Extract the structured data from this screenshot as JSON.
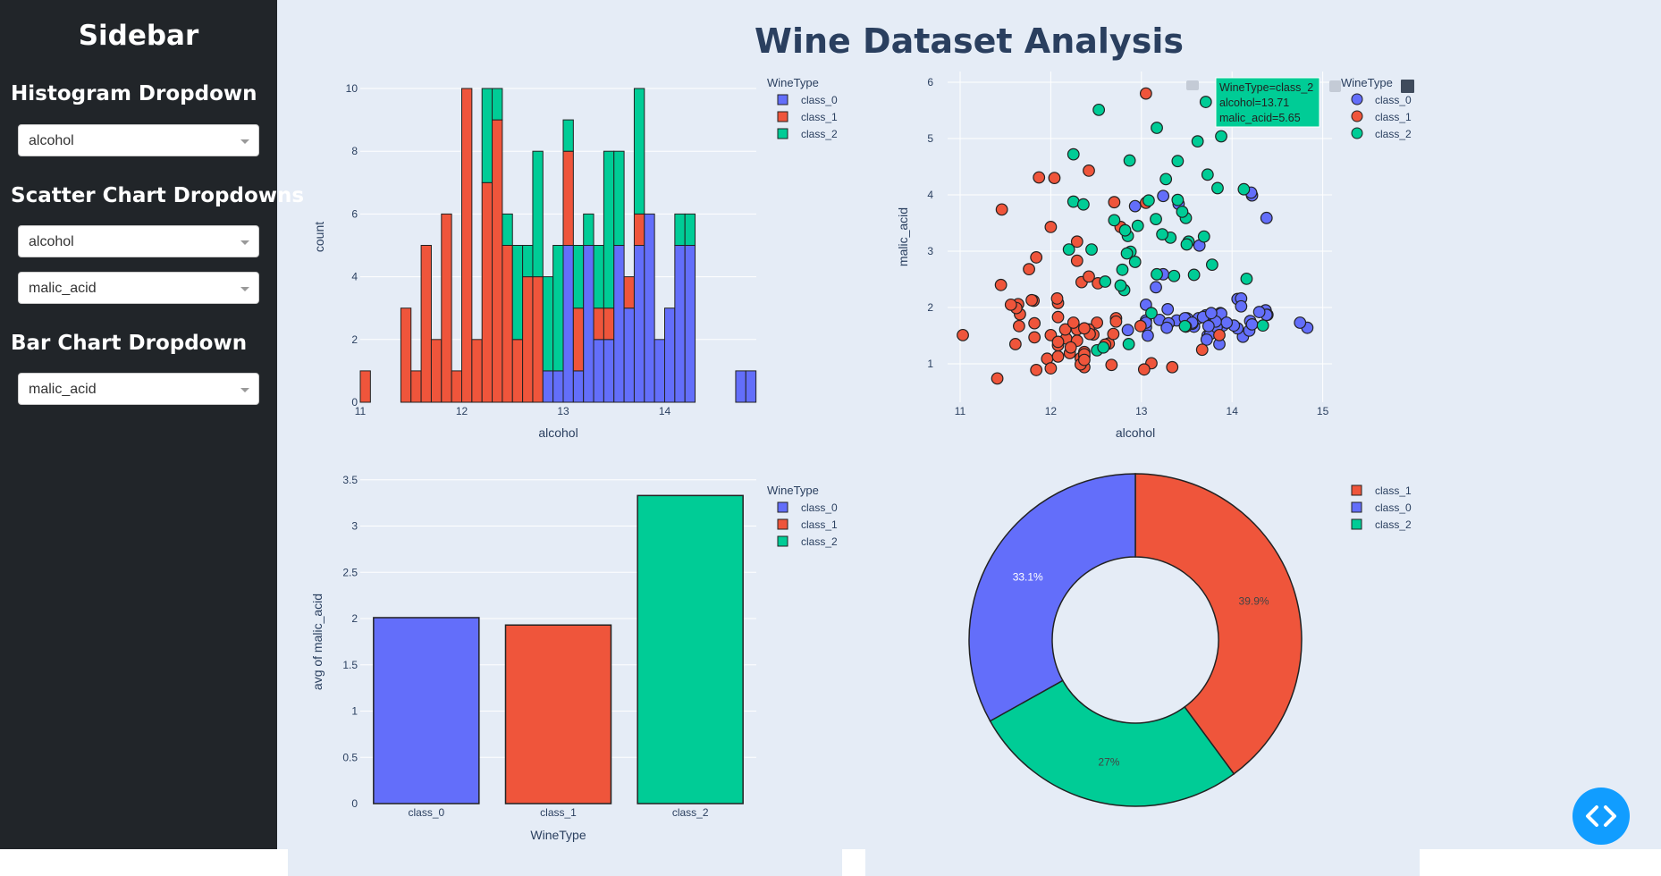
{
  "app_title": "Wine Dataset Analysis",
  "sidebar": {
    "title": "Sidebar",
    "histogram_label": "Histogram Dropdown",
    "histogram_value": "alcohol",
    "scatter_label": "Scatter Chart Dropdowns",
    "scatter_x_value": "alcohol",
    "scatter_y_value": "malic_acid",
    "bar_label": "Bar Chart Dropdown",
    "bar_value": "malic_acid"
  },
  "colors": {
    "class_0": "#636efa",
    "class_1": "#ef553b",
    "class_2": "#00cc96"
  },
  "chart_data": [
    {
      "type": "bar",
      "subtype": "stacked-histogram",
      "xlabel": "alcohol",
      "ylabel": "count",
      "legend_title": "WineType",
      "legend": [
        "class_0",
        "class_1",
        "class_2"
      ],
      "x_ticks": [
        "11",
        "12",
        "13",
        "14"
      ],
      "y_ticks": [
        "0",
        "2",
        "4",
        "6",
        "8",
        "10"
      ],
      "bin_width": 0.1,
      "bins": [
        {
          "x": 11.0,
          "c0": 0,
          "c1": 1,
          "c2": 0
        },
        {
          "x": 11.4,
          "c0": 0,
          "c1": 3,
          "c2": 0
        },
        {
          "x": 11.5,
          "c0": 0,
          "c1": 1,
          "c2": 0
        },
        {
          "x": 11.6,
          "c0": 0,
          "c1": 5,
          "c2": 0
        },
        {
          "x": 11.7,
          "c0": 0,
          "c1": 2,
          "c2": 0
        },
        {
          "x": 11.8,
          "c0": 0,
          "c1": 6,
          "c2": 0
        },
        {
          "x": 11.9,
          "c0": 0,
          "c1": 1,
          "c2": 0
        },
        {
          "x": 12.0,
          "c0": 0,
          "c1": 10,
          "c2": 0
        },
        {
          "x": 12.1,
          "c0": 0,
          "c1": 2,
          "c2": 0
        },
        {
          "x": 12.2,
          "c0": 0,
          "c1": 7,
          "c2": 3
        },
        {
          "x": 12.3,
          "c0": 0,
          "c1": 9,
          "c2": 1
        },
        {
          "x": 12.4,
          "c0": 0,
          "c1": 5,
          "c2": 1
        },
        {
          "x": 12.5,
          "c0": 0,
          "c1": 2,
          "c2": 3
        },
        {
          "x": 12.6,
          "c0": 0,
          "c1": 4,
          "c2": 1
        },
        {
          "x": 12.7,
          "c0": 0,
          "c1": 4,
          "c2": 4
        },
        {
          "x": 12.8,
          "c0": 1,
          "c1": 0,
          "c2": 3
        },
        {
          "x": 12.9,
          "c0": 1,
          "c1": 0,
          "c2": 4
        },
        {
          "x": 13.0,
          "c0": 5,
          "c1": 3,
          "c2": 1
        },
        {
          "x": 13.1,
          "c0": 1,
          "c1": 2,
          "c2": 2
        },
        {
          "x": 13.2,
          "c0": 5,
          "c1": 0,
          "c2": 1
        },
        {
          "x": 13.3,
          "c0": 2,
          "c1": 1,
          "c2": 2
        },
        {
          "x": 13.4,
          "c0": 2,
          "c1": 1,
          "c2": 5
        },
        {
          "x": 13.5,
          "c0": 5,
          "c1": 0,
          "c2": 3
        },
        {
          "x": 13.6,
          "c0": 3,
          "c1": 1,
          "c2": 0
        },
        {
          "x": 13.7,
          "c0": 5,
          "c1": 1,
          "c2": 4
        },
        {
          "x": 13.8,
          "c0": 6,
          "c1": 0,
          "c2": 0
        },
        {
          "x": 13.9,
          "c0": 2,
          "c1": 0,
          "c2": 0
        },
        {
          "x": 14.0,
          "c0": 3,
          "c1": 0,
          "c2": 0
        },
        {
          "x": 14.1,
          "c0": 5,
          "c1": 0,
          "c2": 1
        },
        {
          "x": 14.2,
          "c0": 5,
          "c1": 0,
          "c2": 1
        },
        {
          "x": 14.7,
          "c0": 1,
          "c1": 0,
          "c2": 0
        },
        {
          "x": 14.8,
          "c0": 1,
          "c1": 0,
          "c2": 0
        }
      ]
    },
    {
      "type": "scatter",
      "xlabel": "alcohol",
      "ylabel": "malic_acid",
      "legend_title": "WineType",
      "legend": [
        "class_0",
        "class_1",
        "class_2"
      ],
      "x_ticks": [
        "11",
        "12",
        "13",
        "14",
        "15"
      ],
      "y_ticks": [
        "1",
        "2",
        "3",
        "4",
        "5",
        "6"
      ],
      "tooltip": [
        "WineType=class_2",
        "alcohol=13.71",
        "malic_acid=5.65"
      ],
      "series": [
        {
          "name": "class_0",
          "points": [
            [
              13.2,
              1.78
            ],
            [
              13.16,
              2.36
            ],
            [
              14.37,
              1.95
            ],
            [
              13.24,
              2.59
            ],
            [
              14.2,
              1.76
            ],
            [
              14.39,
              1.87
            ],
            [
              14.06,
              2.15
            ],
            [
              14.83,
              1.64
            ],
            [
              13.86,
              1.35
            ],
            [
              14.1,
              2.16
            ],
            [
              14.12,
              1.48
            ],
            [
              13.75,
              1.73
            ],
            [
              14.75,
              1.73
            ],
            [
              14.38,
              1.87
            ],
            [
              13.63,
              1.81
            ],
            [
              14.3,
              1.92
            ],
            [
              13.83,
              1.57
            ],
            [
              14.19,
              1.59
            ],
            [
              13.64,
              3.1
            ],
            [
              14.06,
              1.63
            ],
            [
              12.93,
              3.8
            ],
            [
              13.71,
              1.86
            ],
            [
              12.85,
              1.6
            ],
            [
              13.5,
              1.81
            ],
            [
              13.05,
              2.05
            ],
            [
              13.39,
              1.77
            ],
            [
              13.3,
              1.72
            ],
            [
              13.87,
              1.9
            ],
            [
              14.02,
              1.68
            ],
            [
              13.73,
              1.5
            ],
            [
              13.58,
              1.66
            ],
            [
              13.68,
              1.83
            ],
            [
              13.76,
              1.53
            ],
            [
              13.51,
              1.8
            ],
            [
              13.48,
              1.81
            ],
            [
              13.28,
              1.64
            ],
            [
              13.05,
              1.65
            ],
            [
              13.07,
              1.5
            ],
            [
              14.22,
              3.99
            ],
            [
              13.56,
              1.71
            ],
            [
              13.41,
              3.84
            ],
            [
              13.88,
              1.89
            ],
            [
              13.24,
              3.98
            ],
            [
              13.05,
              1.77
            ],
            [
              14.21,
              4.04
            ],
            [
              14.38,
              3.59
            ],
            [
              13.9,
              1.68
            ],
            [
              14.1,
              2.02
            ],
            [
              13.94,
              1.73
            ],
            [
              13.05,
              1.73
            ],
            [
              13.83,
              1.65
            ],
            [
              13.82,
              1.75
            ],
            [
              13.77,
              1.9
            ],
            [
              13.74,
              1.67
            ],
            [
              13.56,
              1.73
            ],
            [
              14.22,
              1.7
            ],
            [
              13.29,
              1.97
            ],
            [
              13.72,
              1.43
            ]
          ]
        },
        {
          "name": "class_1",
          "points": [
            [
              12.37,
              0.94
            ],
            [
              12.33,
              1.1
            ],
            [
              12.64,
              1.36
            ],
            [
              13.67,
              1.25
            ],
            [
              12.37,
              1.13
            ],
            [
              12.17,
              1.45
            ],
            [
              12.37,
              1.21
            ],
            [
              13.11,
              1.01
            ],
            [
              12.37,
              1.17
            ],
            [
              13.34,
              0.94
            ],
            [
              12.21,
              1.19
            ],
            [
              12.29,
              1.61
            ],
            [
              13.86,
              1.51
            ],
            [
              13.49,
              1.66
            ],
            [
              12.99,
              1.67
            ],
            [
              11.96,
              1.09
            ],
            [
              11.66,
              1.88
            ],
            [
              13.03,
              0.9
            ],
            [
              11.84,
              2.89
            ],
            [
              12.33,
              0.99
            ],
            [
              12.7,
              3.87
            ],
            [
              12.0,
              0.92
            ],
            [
              12.72,
              1.81
            ],
            [
              12.08,
              1.13
            ],
            [
              13.05,
              3.86
            ],
            [
              11.84,
              0.89
            ],
            [
              12.67,
              0.98
            ],
            [
              12.16,
              1.61
            ],
            [
              11.65,
              1.67
            ],
            [
              11.64,
              2.06
            ],
            [
              12.08,
              1.33
            ],
            [
              12.08,
              1.83
            ],
            [
              12.0,
              1.51
            ],
            [
              12.69,
              1.53
            ],
            [
              12.29,
              2.83
            ],
            [
              11.62,
              1.99
            ],
            [
              12.47,
              1.52
            ],
            [
              11.81,
              2.12
            ],
            [
              12.29,
              1.41
            ],
            [
              12.37,
              1.07
            ],
            [
              12.29,
              3.17
            ],
            [
              12.08,
              2.08
            ],
            [
              12.6,
              1.34
            ],
            [
              12.34,
              2.45
            ],
            [
              11.82,
              1.72
            ],
            [
              12.51,
              1.73
            ],
            [
              12.42,
              2.55
            ],
            [
              12.25,
              1.73
            ],
            [
              12.72,
              1.75
            ],
            [
              12.22,
              1.29
            ],
            [
              11.61,
              1.35
            ],
            [
              11.46,
              3.74
            ],
            [
              12.52,
              2.43
            ],
            [
              11.76,
              2.68
            ],
            [
              11.41,
              0.74
            ],
            [
              12.08,
              1.39
            ],
            [
              11.03,
              1.51
            ],
            [
              11.82,
              1.47
            ],
            [
              12.42,
              1.61
            ],
            [
              12.77,
              3.43
            ],
            [
              12.0,
              3.43
            ],
            [
              11.45,
              2.4
            ],
            [
              11.56,
              2.05
            ],
            [
              12.42,
              4.43
            ],
            [
              13.05,
              5.8
            ],
            [
              11.87,
              4.31
            ],
            [
              12.07,
              2.16
            ],
            [
              12.43,
              1.53
            ],
            [
              11.79,
              2.13
            ],
            [
              12.37,
              1.63
            ],
            [
              12.04,
              4.3
            ]
          ]
        },
        {
          "name": "class_2",
          "points": [
            [
              12.86,
              1.35
            ],
            [
              12.88,
              2.99
            ],
            [
              12.81,
              2.31
            ],
            [
              12.7,
              3.55
            ],
            [
              12.51,
              1.24
            ],
            [
              12.6,
              2.46
            ],
            [
              12.25,
              4.72
            ],
            [
              12.53,
              5.51
            ],
            [
              13.49,
              3.59
            ],
            [
              12.84,
              2.96
            ],
            [
              12.93,
              2.81
            ],
            [
              13.36,
              2.56
            ],
            [
              13.52,
              3.17
            ],
            [
              13.62,
              4.95
            ],
            [
              12.25,
              3.88
            ],
            [
              13.16,
              3.57
            ],
            [
              13.88,
              5.04
            ],
            [
              12.87,
              4.61
            ],
            [
              13.32,
              3.24
            ],
            [
              13.08,
              3.9
            ],
            [
              13.5,
              3.12
            ],
            [
              12.79,
              2.67
            ],
            [
              13.11,
              1.9
            ],
            [
              13.23,
              3.3
            ],
            [
              12.58,
              1.29
            ],
            [
              13.17,
              5.19
            ],
            [
              13.84,
              4.12
            ],
            [
              12.45,
              3.03
            ],
            [
              14.34,
              1.68
            ],
            [
              13.48,
              1.67
            ],
            [
              12.36,
              3.83
            ],
            [
              13.69,
              3.26
            ],
            [
              12.85,
              3.27
            ],
            [
              12.96,
              3.45
            ],
            [
              13.78,
              2.76
            ],
            [
              13.73,
              4.36
            ],
            [
              13.45,
              3.7
            ],
            [
              12.82,
              3.37
            ],
            [
              13.58,
              2.58
            ],
            [
              13.4,
              4.6
            ],
            [
              12.2,
              3.03
            ],
            [
              12.77,
              2.39
            ],
            [
              14.16,
              2.51
            ],
            [
              13.71,
              5.65
            ],
            [
              13.4,
              3.91
            ],
            [
              13.27,
              4.28
            ],
            [
              13.17,
              2.59
            ],
            [
              14.13,
              4.1
            ]
          ]
        }
      ]
    },
    {
      "type": "bar",
      "xlabel": "WineType",
      "ylabel": "avg of malic_acid",
      "legend_title": "WineType",
      "legend": [
        "class_0",
        "class_1",
        "class_2"
      ],
      "categories": [
        "class_0",
        "class_1",
        "class_2"
      ],
      "values": [
        2.01,
        1.93,
        3.33
      ],
      "y_ticks": [
        "0",
        "0.5",
        "1",
        "1.5",
        "2",
        "2.5",
        "3",
        "3.5"
      ],
      "ylim": [
        0,
        3.6
      ]
    },
    {
      "type": "pie",
      "hole": true,
      "legend": [
        "class_1",
        "class_0",
        "class_2"
      ],
      "slices": [
        {
          "name": "class_1",
          "value": 39.9,
          "label": "39.9%"
        },
        {
          "name": "class_2",
          "value": 27.0,
          "label": "27%"
        },
        {
          "name": "class_0",
          "value": 33.1,
          "label": "33.1%"
        }
      ]
    }
  ]
}
